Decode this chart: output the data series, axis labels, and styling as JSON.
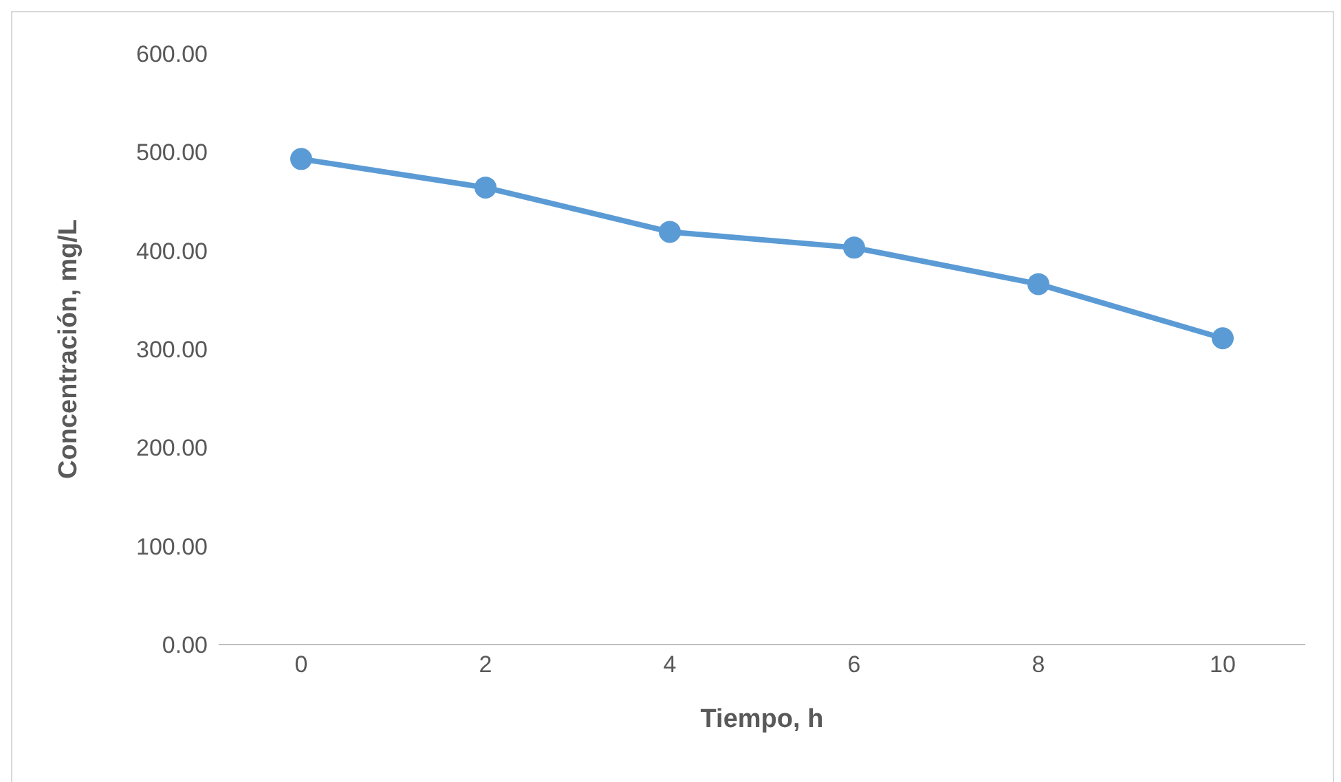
{
  "chart_data": {
    "type": "line",
    "xlabel": "Tiempo, h",
    "ylabel": "Concentración, mg/L",
    "categories": [
      "0",
      "2",
      "4",
      "6",
      "8",
      "10"
    ],
    "series": [
      {
        "color": "#5b9bd5",
        "values": [
          493,
          464,
          419,
          403,
          366,
          311
        ]
      }
    ],
    "ylim": [
      0,
      600
    ],
    "yticks": [
      {
        "value": 0,
        "label": "0.00"
      },
      {
        "value": 100,
        "label": "100.00"
      },
      {
        "value": 200,
        "label": "200.00"
      },
      {
        "value": 300,
        "label": "300.00"
      },
      {
        "value": 400,
        "label": "400.00"
      },
      {
        "value": 500,
        "label": "500.00"
      },
      {
        "value": 600,
        "label": "600.00"
      }
    ],
    "grid": false,
    "marker": "circle",
    "line_style": "solid"
  }
}
